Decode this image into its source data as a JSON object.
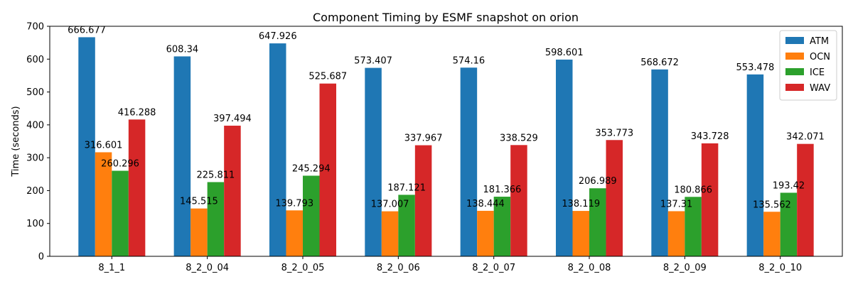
{
  "chart_data": {
    "type": "bar",
    "title": "Component Timing by ESMF snapshot on orion",
    "xlabel": "",
    "ylabel": "Time (seconds)",
    "ylim": [
      0,
      700
    ],
    "yticks": [
      0,
      100,
      200,
      300,
      400,
      500,
      600,
      700
    ],
    "grid": false,
    "legend_position": "top-right",
    "categories": [
      "8_1_1",
      "8_2_0_04",
      "8_2_0_05",
      "8_2_0_06",
      "8_2_0_07",
      "8_2_0_08",
      "8_2_0_09",
      "8_2_0_10"
    ],
    "series": [
      {
        "name": "ATM",
        "color": "#1f77b4",
        "values": [
          666.677,
          608.34,
          647.926,
          573.407,
          574.16,
          598.601,
          568.672,
          553.478
        ]
      },
      {
        "name": "OCN",
        "color": "#ff7f0e",
        "values": [
          316.601,
          145.515,
          139.793,
          137.007,
          138.444,
          138.119,
          137.31,
          135.562
        ]
      },
      {
        "name": "ICE",
        "color": "#2ca02c",
        "values": [
          260.296,
          225.811,
          245.294,
          187.121,
          181.366,
          206.989,
          180.866,
          193.42
        ]
      },
      {
        "name": "WAV",
        "color": "#d62728",
        "values": [
          416.288,
          397.494,
          525.687,
          337.967,
          338.529,
          353.773,
          343.728,
          342.071
        ]
      }
    ]
  }
}
